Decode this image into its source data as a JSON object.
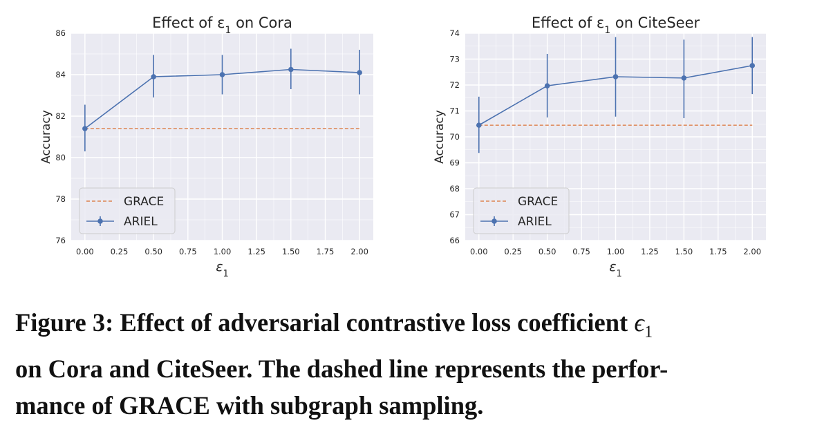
{
  "chart_data": [
    {
      "type": "line",
      "title": "Effect of ε",
      "title_sub": "1",
      "title_suffix": " on Cora",
      "xlabel": "ε",
      "xlabel_sub": "1",
      "ylabel": "Accuracy",
      "xlim": [
        -0.1,
        2.1
      ],
      "ylim": [
        76,
        86
      ],
      "x_ticks": [
        0,
        0.25,
        0.5,
        0.75,
        1.0,
        1.25,
        1.5,
        1.75,
        2.0
      ],
      "x_tick_labels": [
        "0.00",
        "0.25",
        "0.50",
        "0.75",
        "1.00",
        "1.25",
        "1.50",
        "1.75",
        "2.00"
      ],
      "y_ticks": [
        76,
        78,
        80,
        82,
        84,
        86
      ],
      "y_tick_labels": [
        "76",
        "78",
        "80",
        "82",
        "84",
        "86"
      ],
      "grid": true,
      "legend_position": "lower-left",
      "series": [
        {
          "name": "GRACE",
          "style": "dashed",
          "color": "#dd8452",
          "x": [
            0,
            2.0
          ],
          "values": [
            81.4,
            81.4
          ]
        },
        {
          "name": "ARIEL",
          "style": "solid-markers-errorbars",
          "color": "#4c72b0",
          "x": [
            0,
            0.5,
            1.0,
            1.5,
            2.0
          ],
          "values": [
            81.4,
            83.9,
            84.0,
            84.25,
            84.1
          ],
          "err_low": [
            80.3,
            82.9,
            83.05,
            83.3,
            83.05
          ],
          "err_high": [
            82.55,
            84.95,
            84.95,
            85.25,
            85.2
          ]
        }
      ]
    },
    {
      "type": "line",
      "title": "Effect of ε",
      "title_sub": "1",
      "title_suffix": " on CiteSeer",
      "xlabel": "ε",
      "xlabel_sub": "1",
      "ylabel": "Accuracy",
      "xlim": [
        -0.1,
        2.1
      ],
      "ylim": [
        66,
        74
      ],
      "x_ticks": [
        0,
        0.25,
        0.5,
        0.75,
        1.0,
        1.25,
        1.5,
        1.75,
        2.0
      ],
      "x_tick_labels": [
        "0.00",
        "0.25",
        "0.50",
        "0.75",
        "1.00",
        "1.25",
        "1.50",
        "1.75",
        "2.00"
      ],
      "y_ticks": [
        66,
        67,
        68,
        69,
        70,
        71,
        72,
        73,
        74
      ],
      "y_tick_labels": [
        "66",
        "67",
        "68",
        "69",
        "70",
        "71",
        "72",
        "73",
        "74"
      ],
      "grid": true,
      "legend_position": "lower-left",
      "series": [
        {
          "name": "GRACE",
          "style": "dashed",
          "color": "#dd8452",
          "x": [
            0,
            2.0
          ],
          "values": [
            70.45,
            70.45
          ]
        },
        {
          "name": "ARIEL",
          "style": "solid-markers-errorbars",
          "color": "#4c72b0",
          "x": [
            0,
            0.5,
            1.0,
            1.5,
            2.0
          ],
          "values": [
            70.45,
            71.97,
            72.32,
            72.27,
            72.75
          ],
          "err_low": [
            69.38,
            70.75,
            70.78,
            70.72,
            71.65
          ],
          "err_high": [
            71.55,
            73.2,
            73.85,
            73.75,
            73.85
          ]
        }
      ]
    }
  ],
  "caption": {
    "line1_before": "Figure 3: Effect of adversarial contrastive loss coefficient ",
    "symbol": "ϵ",
    "symbol_sub": "1",
    "line2": "on Cora and CiteSeer. The dashed line represents the perfor-",
    "line3": "mance of GRACE with subgraph sampling."
  },
  "colors": {
    "panel_bg": "#eaeaf2",
    "grid": "#ffffff",
    "ariel": "#4c72b0",
    "grace": "#dd8452",
    "text": "#262626"
  }
}
